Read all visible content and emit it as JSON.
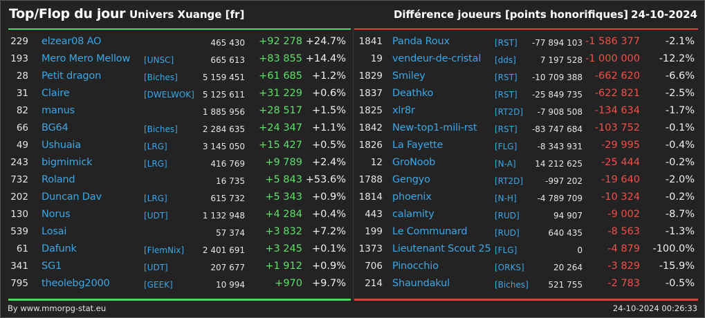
{
  "header": {
    "title": "Top/Flop du jour",
    "subtitle": "Univers Xuange [fr]",
    "right_title": "Différence joueurs [points honorifiques]",
    "date": "24-10-2024"
  },
  "colors": {
    "top_accent": "#4cd964",
    "flop_accent": "#e0433c",
    "link": "#3aa8e8",
    "background": "#232323"
  },
  "top": [
    {
      "rank": "229",
      "name": "elzear08 AO",
      "alliance": "",
      "points": "465 430",
      "diff": "+92 278",
      "pct": "+24.7%"
    },
    {
      "rank": "193",
      "name": "Mero Mero Mellow",
      "alliance": "[UNSC]",
      "points": "665 613",
      "diff": "+83 855",
      "pct": "+14.4%"
    },
    {
      "rank": "28",
      "name": "Petit dragon",
      "alliance": "[Biches]",
      "points": "5 159 451",
      "diff": "+61 685",
      "pct": "+1.2%"
    },
    {
      "rank": "31",
      "name": "Claire",
      "alliance": "[DWELWOK]",
      "points": "5 125 611",
      "diff": "+31 229",
      "pct": "+0.6%"
    },
    {
      "rank": "82",
      "name": "manus",
      "alliance": "",
      "points": "1 885 956",
      "diff": "+28 517",
      "pct": "+1.5%"
    },
    {
      "rank": "66",
      "name": "BG64",
      "alliance": "[Biches]",
      "points": "2 284 635",
      "diff": "+24 347",
      "pct": "+1.1%"
    },
    {
      "rank": "49",
      "name": "Ushuaia",
      "alliance": "[LRG]",
      "points": "3 145 050",
      "diff": "+15 427",
      "pct": "+0.5%"
    },
    {
      "rank": "243",
      "name": "bigmimick",
      "alliance": "[LRG]",
      "points": "416 769",
      "diff": "+9 789",
      "pct": "+2.4%"
    },
    {
      "rank": "732",
      "name": "Roland",
      "alliance": "",
      "points": "16 735",
      "diff": "+5 843",
      "pct": "+53.6%"
    },
    {
      "rank": "202",
      "name": "Duncan Dav",
      "alliance": "[LRG]",
      "points": "615 732",
      "diff": "+5 343",
      "pct": "+0.9%"
    },
    {
      "rank": "130",
      "name": "Norus",
      "alliance": "[UDT]",
      "points": "1 132 948",
      "diff": "+4 284",
      "pct": "+0.4%"
    },
    {
      "rank": "539",
      "name": "Losai",
      "alliance": "",
      "points": "57 374",
      "diff": "+3 832",
      "pct": "+7.2%"
    },
    {
      "rank": "61",
      "name": "Dafunk",
      "alliance": "[FlemNix]",
      "points": "2 401 691",
      "diff": "+3 245",
      "pct": "+0.1%"
    },
    {
      "rank": "341",
      "name": "SG1",
      "alliance": "[UDT]",
      "points": "207 677",
      "diff": "+1 912",
      "pct": "+0.9%"
    },
    {
      "rank": "795",
      "name": "theolebg2000",
      "alliance": "[GEEK]",
      "points": "10 994",
      "diff": "+970",
      "pct": "+9.7%"
    }
  ],
  "flop": [
    {
      "rank": "1841",
      "name": "Panda Roux",
      "alliance": "[RST]",
      "points": "-77 894 103",
      "diff": "-1 586 377",
      "pct": "-2.1%"
    },
    {
      "rank": "19",
      "name": "vendeur-de-cristal",
      "alliance": "[dds]",
      "points": "7 197 528",
      "diff": "-1 000 000",
      "pct": "-12.2%"
    },
    {
      "rank": "1829",
      "name": "Smiley",
      "alliance": "[RST]",
      "points": "-10 709 388",
      "diff": "-662 620",
      "pct": "-6.6%"
    },
    {
      "rank": "1837",
      "name": "Deathko",
      "alliance": "[RST]",
      "points": "-25 849 735",
      "diff": "-622 821",
      "pct": "-2.5%"
    },
    {
      "rank": "1825",
      "name": "xlr8r",
      "alliance": "[RT2D]",
      "points": "-7 908 508",
      "diff": "-134 634",
      "pct": "-1.7%"
    },
    {
      "rank": "1842",
      "name": "New-top1-mili-rst",
      "alliance": "[RST]",
      "points": "-83 747 684",
      "diff": "-103 752",
      "pct": "-0.1%"
    },
    {
      "rank": "1826",
      "name": "La Fayette",
      "alliance": "[FLG]",
      "points": "-8 343 931",
      "diff": "-29 995",
      "pct": "-0.4%"
    },
    {
      "rank": "12",
      "name": "GroNoob",
      "alliance": "[N-A]",
      "points": "14 212 625",
      "diff": "-25 444",
      "pct": "-0.2%"
    },
    {
      "rank": "1788",
      "name": "Gengyo",
      "alliance": "[RT2D]",
      "points": "-997 202",
      "diff": "-19 640",
      "pct": "-2.0%"
    },
    {
      "rank": "1814",
      "name": "phoenix",
      "alliance": "[N-H]",
      "points": "-4 789 709",
      "diff": "-10 324",
      "pct": "-0.2%"
    },
    {
      "rank": "443",
      "name": "calamity",
      "alliance": "[RUD]",
      "points": "94 907",
      "diff": "-9 002",
      "pct": "-8.7%"
    },
    {
      "rank": "199",
      "name": "Le Communard",
      "alliance": "[RUD]",
      "points": "640 435",
      "diff": "-8 563",
      "pct": "-1.3%"
    },
    {
      "rank": "1373",
      "name": "Lieutenant Scout 25",
      "alliance": "[FLG]",
      "points": "0",
      "diff": "-4 879",
      "pct": "-100.0%"
    },
    {
      "rank": "706",
      "name": "Pinocchio",
      "alliance": "[ORKS]",
      "points": "20 264",
      "diff": "-3 829",
      "pct": "-15.9%"
    },
    {
      "rank": "214",
      "name": "Shaundakul",
      "alliance": "[Biches]",
      "points": "521 755",
      "diff": "-2 783",
      "pct": "-0.5%"
    }
  ],
  "footer": {
    "credit": "By www.mmorpg-stat.eu",
    "timestamp": "24-10-2024 00:26:33"
  }
}
